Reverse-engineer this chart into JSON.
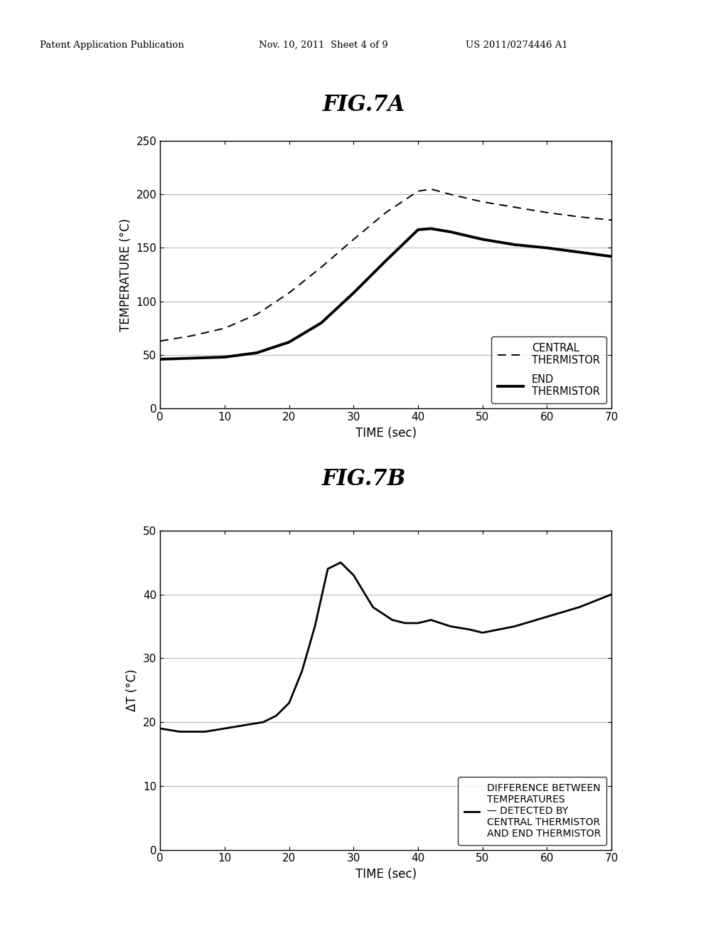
{
  "fig_title_a": "FIG.7A",
  "fig_title_b": "FIG.7B",
  "header_left": "Patent Application Publication",
  "header_mid": "Nov. 10, 2011  Sheet 4 of 9",
  "header_right": "US 2011/0274446 A1",
  "plot_a": {
    "xlabel": "TIME (sec)",
    "ylabel": "TEMPERATURE (°C)",
    "xlim": [
      0,
      70
    ],
    "ylim": [
      0,
      250
    ],
    "xticks": [
      0,
      10,
      20,
      30,
      40,
      50,
      60,
      70
    ],
    "yticks": [
      0,
      50,
      100,
      150,
      200,
      250
    ],
    "legend_central": "CENTRAL\nTHERMISTOR",
    "legend_end": "END\nTHERMISTOR",
    "central_x": [
      0,
      5,
      10,
      15,
      20,
      25,
      30,
      35,
      40,
      42,
      45,
      50,
      55,
      60,
      65,
      70
    ],
    "central_y": [
      63,
      68,
      75,
      88,
      108,
      132,
      158,
      183,
      203,
      205,
      200,
      193,
      188,
      183,
      179,
      176
    ],
    "end_x": [
      0,
      5,
      10,
      15,
      20,
      25,
      30,
      35,
      40,
      42,
      45,
      50,
      55,
      60,
      65,
      70
    ],
    "end_y": [
      46,
      47,
      48,
      52,
      62,
      80,
      108,
      138,
      167,
      168,
      165,
      158,
      153,
      150,
      146,
      142
    ]
  },
  "plot_b": {
    "xlabel": "TIME (sec)",
    "ylabel": "ΔT (°C)",
    "xlim": [
      0,
      70
    ],
    "ylim": [
      0,
      50
    ],
    "xticks": [
      0,
      10,
      20,
      30,
      40,
      50,
      60,
      70
    ],
    "yticks": [
      0,
      10,
      20,
      30,
      40,
      50
    ],
    "legend_text": "DIFFERENCE BETWEEN\nTEMPERATURES\n— DETECTED BY\nCENTRAL THERMISTOR\nAND END THERMISTOR",
    "diff_x": [
      0,
      3,
      7,
      10,
      13,
      16,
      18,
      20,
      22,
      24,
      26,
      28,
      30,
      33,
      36,
      38,
      40,
      42,
      45,
      48,
      50,
      55,
      60,
      65,
      70
    ],
    "diff_y": [
      19,
      18.5,
      18.5,
      19,
      19.5,
      20,
      21,
      23,
      28,
      35,
      44,
      45,
      43,
      38,
      36,
      35.5,
      35.5,
      36,
      35,
      34.5,
      34,
      35,
      36.5,
      38,
      40
    ]
  },
  "background_color": "#ffffff",
  "line_color": "#000000",
  "grid_color": "#bbbbbb"
}
